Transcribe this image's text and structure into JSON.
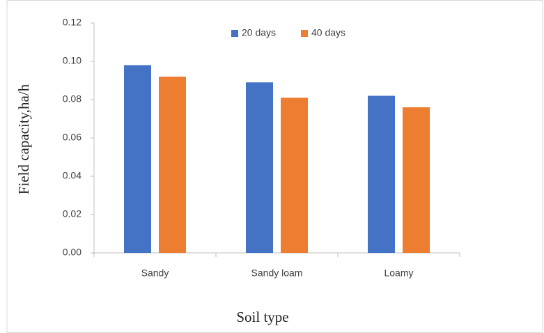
{
  "chart_data": {
    "type": "bar",
    "x_label": "Soil type",
    "y_label": "Field capacity,ha/h",
    "categories": [
      "Sandy",
      "Sandy loam",
      "Loamy"
    ],
    "series": [
      {
        "name": "20 days",
        "color": "#4472c4",
        "values": [
          0.098,
          0.089,
          0.082
        ]
      },
      {
        "name": "40 days",
        "color": "#ed7d31",
        "values": [
          0.092,
          0.081,
          0.076
        ]
      }
    ],
    "ylim": [
      0,
      0.12
    ],
    "yticks": [
      {
        "value": 0,
        "label": "0.00"
      },
      {
        "value": 0.02,
        "label": "0.02"
      },
      {
        "value": 0.04,
        "label": "0.04"
      },
      {
        "value": 0.06,
        "label": "0.06"
      },
      {
        "value": 0.08,
        "label": "0.08"
      },
      {
        "value": 0.1,
        "label": "0.10"
      },
      {
        "value": 0.12,
        "label": "0.12"
      }
    ],
    "legend": "top"
  }
}
